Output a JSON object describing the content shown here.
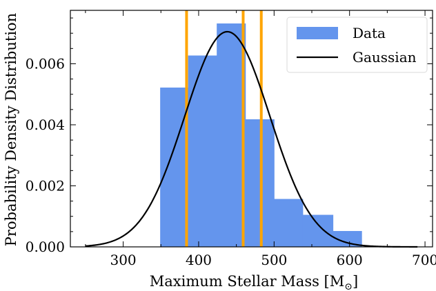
{
  "chart_data": {
    "type": "bar",
    "title": "",
    "xlabel": "Maximum Stellar Mass [M",
    "xlabel_subscript": "⊙",
    "xlabel_suffix": "]",
    "ylabel": "Probability Density Distribution",
    "xlim": [
      230,
      710
    ],
    "ylim": [
      0,
      0.00775
    ],
    "xticks": [
      300,
      400,
      500,
      600,
      700
    ],
    "xtick_labels": [
      "300",
      "400",
      "500",
      "600",
      "700"
    ],
    "yticks": [
      0,
      0.002,
      0.004,
      0.006
    ],
    "ytick_labels": [
      "0.000",
      "0.002",
      "0.004",
      "0.006"
    ],
    "histogram": {
      "name": "Data",
      "color": "#6495ED",
      "bins": [
        {
          "x0": 349,
          "x1": 386,
          "value": 0.00522
        },
        {
          "x0": 386,
          "x1": 424,
          "value": 0.00627
        },
        {
          "x0": 424,
          "x1": 462,
          "value": 0.00732
        },
        {
          "x0": 462,
          "x1": 500,
          "value": 0.00418
        },
        {
          "x0": 500,
          "x1": 538,
          "value": 0.00157
        },
        {
          "x0": 538,
          "x1": 578,
          "value": 0.00105
        },
        {
          "x0": 578,
          "x1": 616,
          "value": 0.00052
        }
      ]
    },
    "gaussian": {
      "name": "Gaussian",
      "color": "#000000",
      "mean": 438,
      "std": 56.5,
      "amplitude": 0.00705,
      "x_range": [
        250,
        690
      ]
    },
    "vertical_lines": {
      "color": "#FFA500",
      "x": [
        384,
        459,
        483
      ]
    },
    "legend": {
      "position": "top-right",
      "entries": [
        "Data",
        "Gaussian"
      ]
    },
    "grid": false
  }
}
